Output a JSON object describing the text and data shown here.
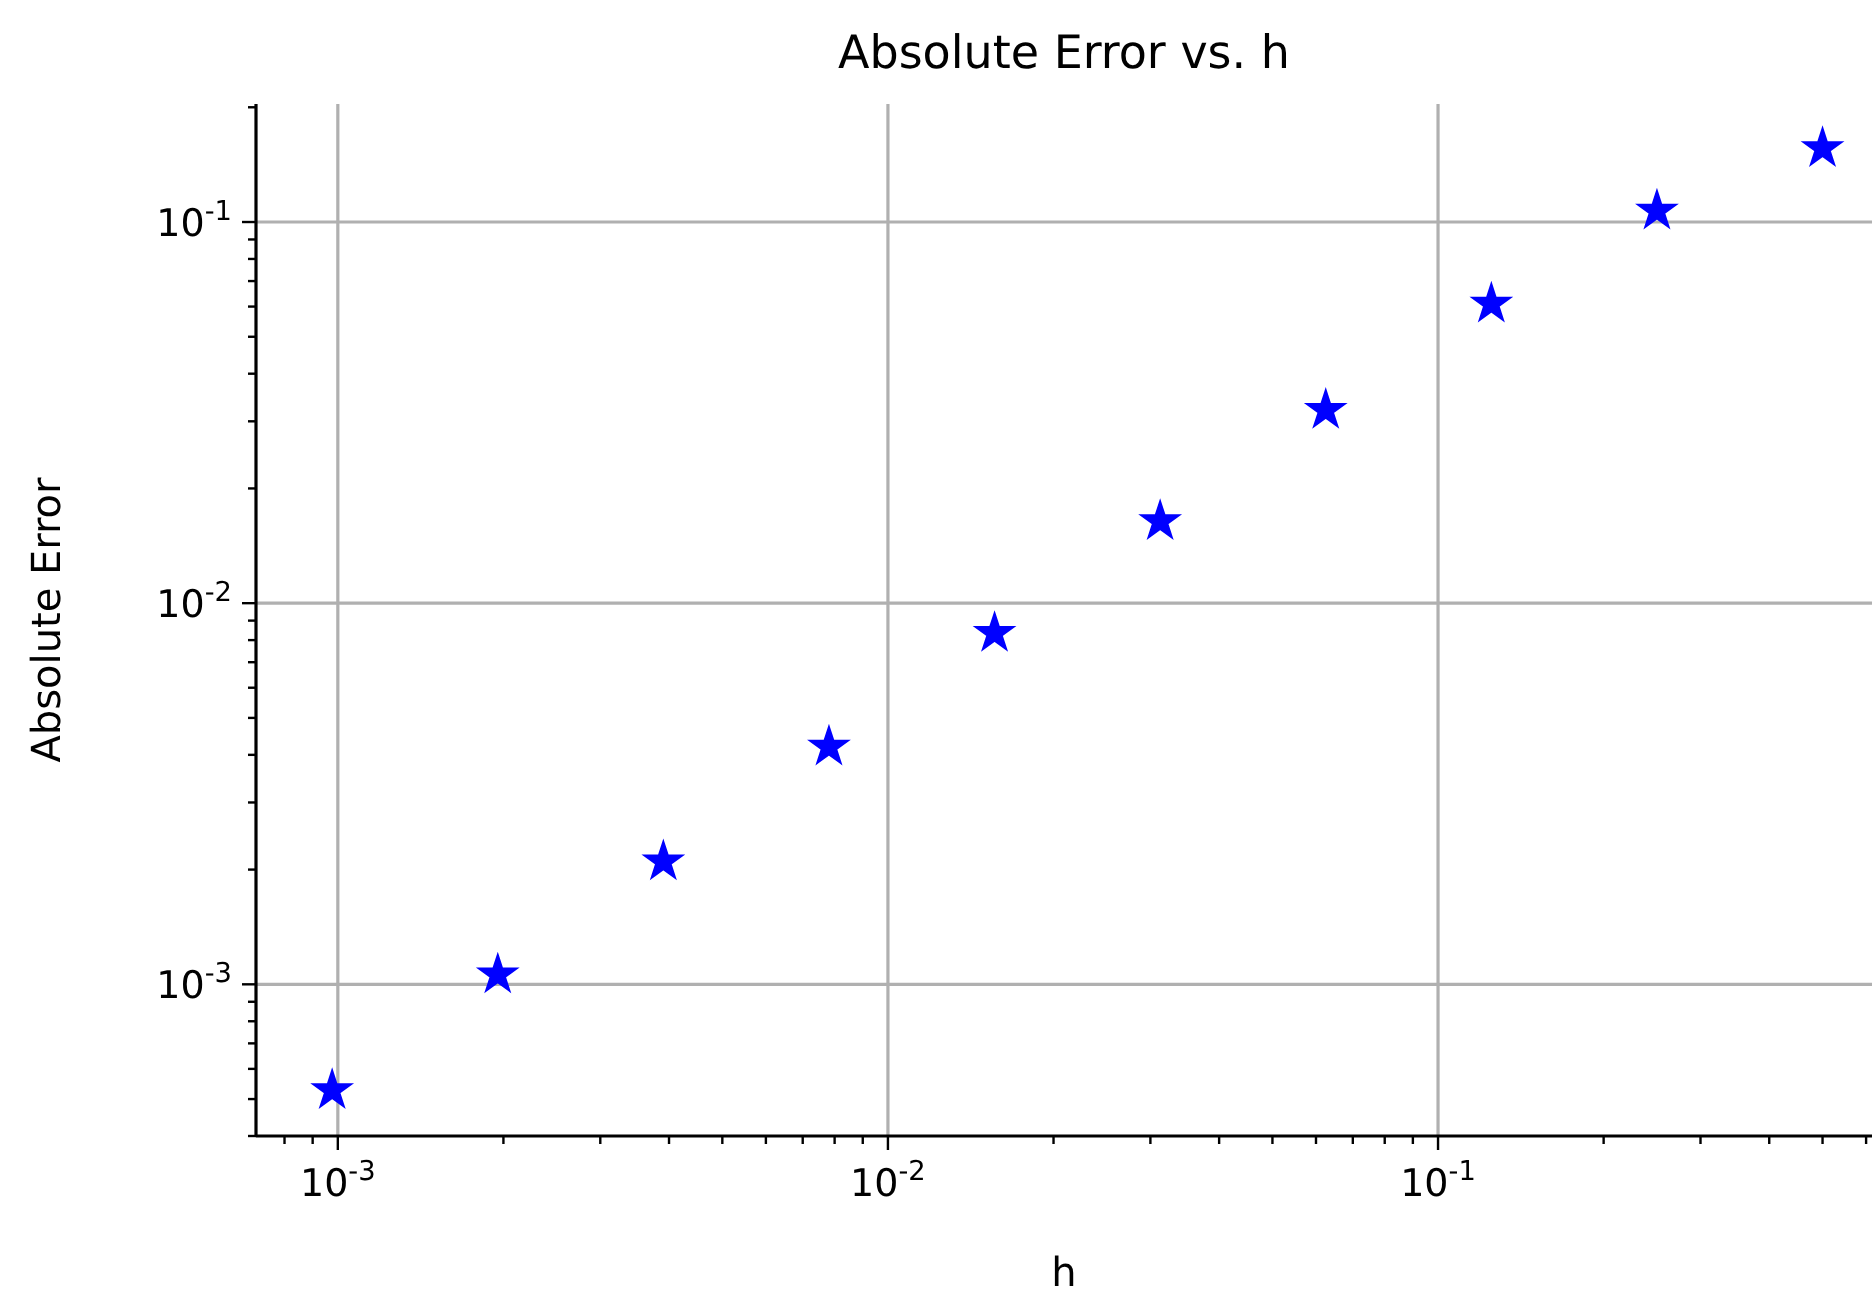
{
  "chart_data": {
    "type": "scatter",
    "title": "Absolute Error vs. h",
    "xlabel": "h",
    "ylabel": "Absolute Error",
    "log": "xy",
    "grid": true,
    "marker": "star",
    "xlim": [
      0.00071,
      0.615
    ],
    "ylim": [
      0.0004,
      0.204
    ],
    "xticks": [
      {
        "value": 0.001,
        "label": "10$^{-3}$"
      },
      {
        "value": 0.01,
        "label": "10$^{-2}$"
      },
      {
        "value": 0.1,
        "label": "10$^{-1}$"
      },
      {
        "value": 0.0008,
        "label": null
      },
      {
        "value": 0.0009,
        "label": null
      },
      {
        "value": 0.002,
        "label": null
      },
      {
        "value": 0.003,
        "label": null
      },
      {
        "value": 0.004,
        "label": null
      },
      {
        "value": 0.005,
        "label": null
      },
      {
        "value": 0.006,
        "label": null
      },
      {
        "value": 0.007,
        "label": null
      },
      {
        "value": 0.008,
        "label": null
      },
      {
        "value": 0.009,
        "label": null
      },
      {
        "value": 0.02,
        "label": null
      },
      {
        "value": 0.03,
        "label": null
      },
      {
        "value": 0.04,
        "label": null
      },
      {
        "value": 0.05,
        "label": null
      },
      {
        "value": 0.06,
        "label": null
      },
      {
        "value": 0.07,
        "label": null
      },
      {
        "value": 0.08,
        "label": null
      },
      {
        "value": 0.09,
        "label": null
      },
      {
        "value": 0.2,
        "label": null
      },
      {
        "value": 0.3,
        "label": null
      },
      {
        "value": 0.4,
        "label": null
      },
      {
        "value": 0.5,
        "label": null
      },
      {
        "value": 0.6,
        "label": null
      }
    ],
    "yticks": [
      {
        "value": 0.001,
        "label": "10$^{-3}$"
      },
      {
        "value": 0.01,
        "label": "10$^{-2}$"
      },
      {
        "value": 0.1,
        "label": "10$^{-1}$"
      },
      {
        "value": 0.0004,
        "label": null
      },
      {
        "value": 0.0005,
        "label": null
      },
      {
        "value": 0.0006,
        "label": null
      },
      {
        "value": 0.0007,
        "label": null
      },
      {
        "value": 0.0008,
        "label": null
      },
      {
        "value": 0.0009,
        "label": null
      },
      {
        "value": 0.002,
        "label": null
      },
      {
        "value": 0.003,
        "label": null
      },
      {
        "value": 0.004,
        "label": null
      },
      {
        "value": 0.005,
        "label": null
      },
      {
        "value": 0.006,
        "label": null
      },
      {
        "value": 0.007,
        "label": null
      },
      {
        "value": 0.008,
        "label": null
      },
      {
        "value": 0.009,
        "label": null
      },
      {
        "value": 0.02,
        "label": null
      },
      {
        "value": 0.03,
        "label": null
      },
      {
        "value": 0.04,
        "label": null
      },
      {
        "value": 0.05,
        "label": null
      },
      {
        "value": 0.06,
        "label": null
      },
      {
        "value": 0.07,
        "label": null
      },
      {
        "value": 0.08,
        "label": null
      },
      {
        "value": 0.09,
        "label": null
      },
      {
        "value": 0.2,
        "label": null
      }
    ],
    "x": [
      0.0009765625,
      0.001953125,
      0.00390625,
      0.0078125,
      0.015625,
      0.03125,
      0.0625,
      0.125,
      0.25,
      0.5
    ],
    "series": [
      {
        "color": "#0000ff",
        "values": [
          0.000527,
          0.00106,
          0.0021,
          0.0042,
          0.00834,
          0.0164,
          0.0321,
          0.061,
          0.107,
          0.156
        ]
      }
    ]
  }
}
